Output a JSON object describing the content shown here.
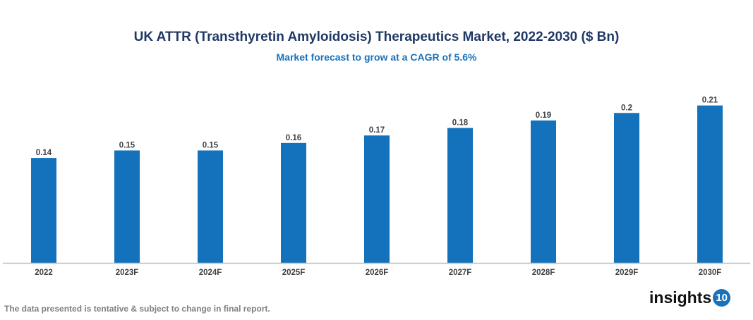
{
  "chart_data": {
    "type": "bar",
    "title": "UK ATTR (Transthyretin Amyloidosis) Therapeutics Market, 2022-2030 ($ Bn)",
    "subtitle": "Market forecast to grow at a CAGR of 5.6%",
    "categories": [
      "2022",
      "2023F",
      "2024F",
      "2025F",
      "2026F",
      "2027F",
      "2028F",
      "2029F",
      "2030F"
    ],
    "values": [
      0.14,
      0.15,
      0.15,
      0.16,
      0.17,
      0.18,
      0.19,
      0.2,
      0.21
    ],
    "data_labels": [
      "0.14",
      "0.15",
      "0.15",
      "0.16",
      "0.17",
      "0.18",
      "0.19",
      "0.2",
      "0.21"
    ],
    "xlabel": "",
    "ylabel": "",
    "ylim": [
      0,
      0.22
    ],
    "grid": false,
    "bar_color": "#1372bb"
  },
  "footer": {
    "note": "The data presented is tentative & subject to change in final report.",
    "logo_text": "insights",
    "logo_number": "10"
  }
}
